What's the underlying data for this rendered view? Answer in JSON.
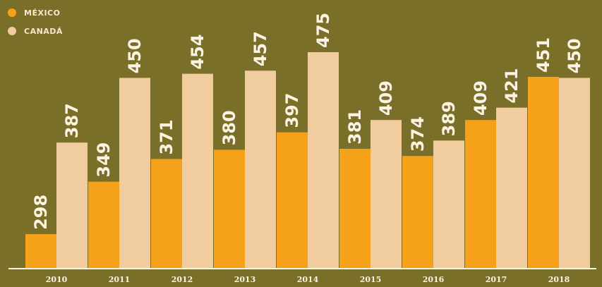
{
  "colors": {
    "background": "#7a6f28",
    "mexico": "#f5a21a",
    "canada": "#f1cc9f",
    "text": "#fbf3e3"
  },
  "legend": {
    "items": [
      {
        "label": "MÉXICO",
        "color": "#f5a21a"
      },
      {
        "label": "CANADÁ",
        "color": "#f1cc9f"
      }
    ],
    "placement": "top-left"
  },
  "chart_data": {
    "type": "bar",
    "title": "",
    "xlabel": "",
    "ylabel": "",
    "categories": [
      "2010",
      "2011",
      "2012",
      "2013",
      "2014",
      "2015",
      "2016",
      "2017",
      "2018"
    ],
    "series": [
      {
        "name": "MÉXICO",
        "values": [
          298,
          349,
          371,
          380,
          397,
          381,
          374,
          409,
          451
        ]
      },
      {
        "name": "CANADÁ",
        "values": [
          387,
          450,
          454,
          457,
          475,
          409,
          389,
          421,
          450
        ]
      }
    ],
    "value_labels": true,
    "ylim": [
      265,
      475
    ],
    "grid": false
  }
}
